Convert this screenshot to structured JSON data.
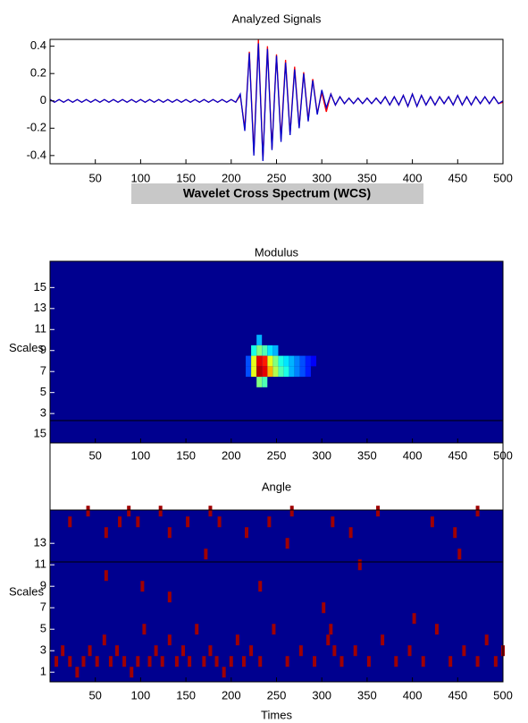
{
  "banner": "Wavelet Cross Spectrum (WCS)",
  "chart_data": [
    {
      "type": "line",
      "title": "Analyzed Signals",
      "xlim": [
        0,
        500
      ],
      "ylim": [
        -0.46,
        0.45
      ],
      "xticks": [
        50,
        100,
        150,
        200,
        250,
        300,
        350,
        400,
        450,
        500
      ],
      "yticks": [
        -0.4,
        -0.2,
        0,
        0.2,
        0.4
      ],
      "x": [
        0,
        5,
        10,
        15,
        20,
        25,
        30,
        35,
        40,
        45,
        50,
        55,
        60,
        65,
        70,
        75,
        80,
        85,
        90,
        95,
        100,
        105,
        110,
        115,
        120,
        125,
        130,
        135,
        140,
        145,
        150,
        155,
        160,
        165,
        170,
        175,
        180,
        185,
        190,
        195,
        200,
        205,
        210,
        215,
        220,
        225,
        230,
        235,
        240,
        245,
        250,
        255,
        260,
        265,
        270,
        275,
        280,
        285,
        290,
        295,
        300,
        305,
        310,
        315,
        320,
        325,
        330,
        335,
        340,
        345,
        350,
        355,
        360,
        365,
        370,
        375,
        380,
        385,
        390,
        395,
        400,
        405,
        410,
        415,
        420,
        425,
        430,
        435,
        440,
        445,
        450,
        455,
        460,
        465,
        470,
        475,
        480,
        485,
        490,
        495,
        500
      ],
      "series": [
        {
          "color": "#ff0000",
          "values": [
            0.01,
            -0.01,
            0.01,
            -0.01,
            0.01,
            -0.01,
            0.01,
            -0.01,
            0.01,
            -0.01,
            0.01,
            -0.01,
            0.01,
            -0.01,
            0.01,
            -0.01,
            0.01,
            -0.01,
            0.01,
            -0.01,
            0.01,
            -0.01,
            0.01,
            -0.01,
            0.01,
            -0.01,
            0.01,
            -0.01,
            0.01,
            -0.01,
            0.01,
            -0.01,
            0.01,
            -0.01,
            0.01,
            -0.01,
            0.01,
            -0.01,
            0.01,
            -0.01,
            0.01,
            -0.01,
            0.04,
            -0.2,
            0.36,
            -0.38,
            0.45,
            -0.43,
            0.4,
            -0.35,
            0.34,
            -0.28,
            0.3,
            -0.24,
            0.25,
            -0.19,
            0.21,
            -0.14,
            0.16,
            -0.09,
            0.06,
            -0.08,
            0.05,
            -0.03,
            0.03,
            -0.02,
            0.02,
            -0.02,
            0.02,
            -0.02,
            0.02,
            -0.02,
            0.02,
            -0.02,
            0.03,
            -0.03,
            0.03,
            -0.03,
            0.04,
            -0.04,
            0.05,
            -0.04,
            0.04,
            -0.03,
            0.03,
            -0.03,
            0.03,
            -0.02,
            0.03,
            -0.03,
            0.04,
            -0.03,
            0.03,
            -0.03,
            0.03,
            -0.02,
            0.03,
            -0.02,
            0.03,
            -0.02,
            -0.01
          ]
        },
        {
          "color": "#0000cc",
          "values": [
            0.01,
            -0.01,
            0.01,
            -0.01,
            0.01,
            -0.01,
            0.01,
            -0.01,
            0.01,
            -0.01,
            0.01,
            -0.01,
            0.01,
            -0.01,
            0.01,
            -0.01,
            0.01,
            -0.01,
            0.01,
            -0.01,
            0.01,
            -0.01,
            0.01,
            -0.01,
            0.01,
            -0.01,
            0.01,
            -0.01,
            0.01,
            -0.01,
            0.01,
            -0.01,
            0.01,
            -0.01,
            0.01,
            -0.01,
            0.01,
            -0.01,
            0.01,
            -0.01,
            0.01,
            -0.01,
            0.05,
            -0.22,
            0.35,
            -0.4,
            0.42,
            -0.44,
            0.38,
            -0.36,
            0.33,
            -0.3,
            0.28,
            -0.25,
            0.23,
            -0.2,
            0.2,
            -0.15,
            0.15,
            -0.1,
            0.08,
            -0.05,
            0.05,
            -0.03,
            0.03,
            -0.02,
            0.02,
            -0.02,
            0.02,
            -0.02,
            0.02,
            -0.02,
            0.02,
            -0.02,
            0.03,
            -0.03,
            0.03,
            -0.03,
            0.04,
            -0.04,
            0.05,
            -0.04,
            0.04,
            -0.03,
            0.03,
            -0.03,
            0.03,
            -0.02,
            0.03,
            -0.03,
            0.04,
            -0.03,
            0.03,
            -0.03,
            0.03,
            -0.02,
            0.03,
            -0.02,
            0.03,
            -0.02,
            0
          ]
        }
      ]
    },
    {
      "type": "heatmap",
      "title": "Modulus",
      "ylabel": "Scales",
      "extra_label": "15",
      "xlim": [
        0,
        500
      ],
      "ylim": [
        0.2,
        17.5
      ],
      "xticks": [
        50,
        100,
        150,
        200,
        250,
        300,
        350,
        400,
        450,
        500
      ],
      "yticks": [
        3,
        5,
        7,
        9,
        11,
        13,
        15
      ],
      "cells": {
        "x": [
          216,
          216,
          222,
          222,
          222,
          228,
          228,
          228,
          228,
          228,
          234,
          234,
          234,
          234,
          240,
          240,
          240,
          246,
          246,
          246,
          252,
          252,
          258,
          258,
          264,
          264,
          270,
          270,
          276,
          276,
          282,
          282,
          288
        ],
        "scale": [
          8,
          7,
          9,
          8,
          7,
          10,
          9,
          8,
          7,
          6,
          9,
          8,
          7,
          6,
          9,
          8,
          7,
          9,
          8,
          7,
          8,
          7,
          8,
          7,
          8,
          7,
          8,
          7,
          8,
          7,
          8,
          7,
          8
        ],
        "values": [
          0.2,
          0.2,
          0.4,
          0.6,
          0.6,
          0.3,
          0.5,
          0.9,
          0.95,
          0.5,
          0.45,
          0.85,
          0.9,
          0.45,
          0.35,
          0.6,
          0.7,
          0.3,
          0.5,
          0.55,
          0.4,
          0.45,
          0.35,
          0.4,
          0.3,
          0.3,
          0.25,
          0.25,
          0.2,
          0.2,
          0.15,
          0.15,
          0.12
        ]
      }
    },
    {
      "type": "binary-map",
      "title": "Angle",
      "ylabel": "Scales",
      "xlabel": "Times",
      "xlim": [
        0,
        500
      ],
      "ylim": [
        0.1,
        16.1
      ],
      "xticks": [
        50,
        100,
        150,
        200,
        250,
        300,
        350,
        400,
        450,
        500
      ],
      "yticks": [
        1,
        3,
        5,
        7,
        9,
        11,
        13
      ],
      "cells": {
        "x": [
          5,
          12,
          20,
          28,
          35,
          42,
          50,
          58,
          65,
          72,
          80,
          88,
          95,
          102,
          108,
          115,
          122,
          130,
          138,
          145,
          152,
          160,
          168,
          175,
          182,
          190,
          198,
          205,
          212,
          220,
          230,
          245,
          260,
          275,
          290,
          305,
          308,
          312,
          320,
          335,
          350,
          365,
          380,
          395,
          410,
          425,
          440,
          455,
          470,
          480,
          490,
          498,
          20,
          40,
          60,
          75,
          85,
          95,
          120,
          130,
          150,
          175,
          185,
          215,
          240,
          265,
          310,
          330,
          360,
          420,
          445,
          470,
          60,
          130,
          230,
          300,
          340,
          400,
          450,
          170,
          100,
          260
        ],
        "scale": [
          2,
          3,
          2,
          1,
          2,
          3,
          2,
          4,
          2,
          3,
          2,
          1,
          2,
          5,
          2,
          3,
          2,
          4,
          2,
          3,
          2,
          5,
          2,
          3,
          2,
          1,
          2,
          4,
          2,
          3,
          2,
          5,
          2,
          3,
          2,
          4,
          5,
          3,
          2,
          3,
          2,
          4,
          2,
          3,
          2,
          5,
          2,
          3,
          2,
          4,
          2,
          3,
          15,
          16,
          14,
          15,
          16,
          15,
          16,
          14,
          15,
          16,
          15,
          14,
          15,
          16,
          15,
          14,
          16,
          15,
          14,
          16,
          10,
          8,
          9,
          7,
          11,
          6,
          12,
          12,
          9,
          13
        ]
      }
    }
  ]
}
